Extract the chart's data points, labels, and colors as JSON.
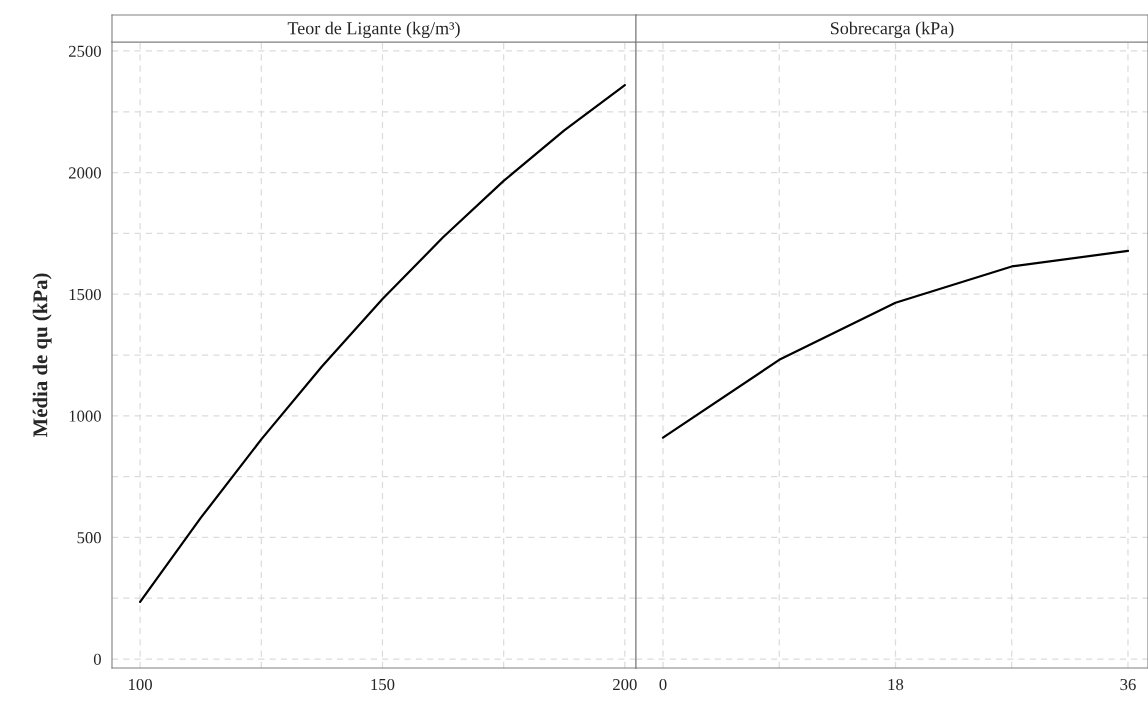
{
  "chart_data": [
    {
      "type": "line",
      "title": "Teor de Ligante (kg/m³)",
      "ylabel": "Média de qu (kPa)",
      "x": [
        100,
        112.5,
        125,
        137.5,
        150,
        162.5,
        175,
        187.5,
        200
      ],
      "series": [
        {
          "color": "#000000",
          "values": [
            235,
            580,
            903,
            1203,
            1480,
            1734,
            1966,
            2174,
            2360
          ]
        }
      ],
      "xlim": [
        94.2,
        202.3
      ],
      "xticks": [
        100,
        {
          "value": 125,
          "label": null
        },
        150,
        {
          "value": 175,
          "label": null
        },
        200
      ],
      "ylim": [
        -37,
        2537
      ],
      "yticks": [
        0,
        {
          "value": 250,
          "label": null
        },
        500,
        {
          "value": 750,
          "label": null
        },
        1000,
        {
          "value": 1250,
          "label": null
        },
        1500,
        {
          "value": 1750,
          "label": null
        },
        2000,
        {
          "value": 2250,
          "label": null
        },
        2500
      ],
      "grid": true,
      "legend": false,
      "marker": "none",
      "line_style": "solid"
    },
    {
      "type": "line",
      "title": "Sobrecarga (kPa)",
      "x": [
        0,
        9,
        18,
        27,
        36
      ],
      "series": [
        {
          "color": "#000000",
          "values": [
            910,
            1230,
            1465,
            1614,
            1678
          ]
        }
      ],
      "xlim": [
        -2.09,
        37.55
      ],
      "xticks": [
        0,
        {
          "value": 9,
          "label": null
        },
        18,
        {
          "value": 27,
          "label": null
        },
        36
      ],
      "ylim": [
        -37,
        2537
      ],
      "yticks": [
        0,
        {
          "value": 250,
          "label": null
        },
        500,
        {
          "value": 750,
          "label": null
        },
        1000,
        {
          "value": 1250,
          "label": null
        },
        1500,
        {
          "value": 1750,
          "label": null
        },
        2000,
        {
          "value": 2250,
          "label": null
        },
        2500
      ],
      "tick_labels": "x",
      "grid": true,
      "legend": false,
      "marker": "none",
      "line_style": "solid"
    }
  ]
}
